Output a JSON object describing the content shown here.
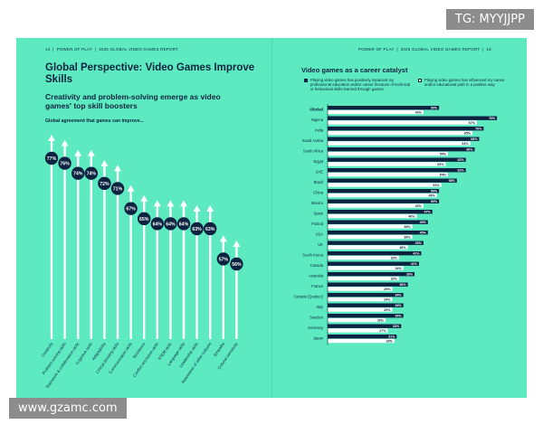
{
  "header": {
    "left_page": "14",
    "left_report": "POWER OF PLAY",
    "left_year_title": "2025 GLOBAL VIDEO GAMES REPORT",
    "right_report": "POWER OF PLAY",
    "right_year_title": "2025 GLOBAL VIDEO GAMES REPORT",
    "right_page": "15"
  },
  "left": {
    "title": "Global Perspective: Video Games Improve Skills",
    "subtitle": "Creativity and problem-solving emerge as video games' top skill boosters",
    "caption": "Global agreement that games can improve..."
  },
  "right": {
    "title": "Video games as a career catalyst"
  },
  "watermarks": {
    "top": "TG: MYYJJPP",
    "bottom": "www.gzamc.com"
  },
  "colors": {
    "background": "#5eeac0",
    "navy": "#0b2340",
    "white": "#ffffff"
  },
  "chart_data": [
    {
      "type": "bar",
      "title": "Global agreement that games can improve...",
      "categories": [
        "Creativity",
        "Problem-solving skills",
        "Teamwork & collaboration skills",
        "Cognitive skills",
        "Adaptability",
        "Critical-thinking skills",
        "Communication skills",
        "Resilience",
        "Conflict resolution skills",
        "STEM skills",
        "Language skills",
        "Leadership skills",
        "Awareness of other cultures",
        "Empathy",
        "Cultural sensitivity"
      ],
      "values": [
        77,
        76,
        74,
        74,
        72,
        71,
        67,
        65,
        64,
        64,
        64,
        63,
        63,
        57,
        56
      ],
      "value_labels": [
        "77%",
        "76%",
        "74%",
        "74%",
        "72%",
        "71%",
        "67%",
        "65%",
        "64%",
        "64%",
        "64%",
        "63%",
        "63%",
        "57%",
        "56%"
      ],
      "unit": "%",
      "style": "vertical arrows with circular percentage markers"
    },
    {
      "type": "bar",
      "title": "Video games as a career catalyst",
      "orientation": "horizontal",
      "categories": [
        "Global",
        "Nigeria",
        "India",
        "Saudi Arabia",
        "South Africa",
        "Egypt",
        "UAE",
        "Brazil",
        "China",
        "Mexico",
        "Spain",
        "Poland",
        "USA",
        "UK",
        "South Korea",
        "Canada",
        "Australia",
        "France",
        "Canada (Quebec)",
        "Italy",
        "Sweden",
        "Germany",
        "Japan"
      ],
      "series": [
        {
          "name": "Playing video games has positively impacted my professional education and/or career because of technical or behavioral skills learned through games",
          "values": [
            50,
            76,
            70,
            68,
            66,
            62,
            62,
            58,
            50,
            50,
            47,
            45,
            45,
            43,
            42,
            41,
            39,
            36,
            34,
            34,
            34,
            33,
            31
          ],
          "labels": [
            "50%",
            "76%",
            "70%",
            "68%",
            "66%",
            "62%",
            "62%",
            "58%",
            "50%",
            "50%",
            "47%",
            "45%",
            "45%",
            "43%",
            "42%",
            "41%",
            "39%",
            "36%",
            "34%",
            "34%",
            "34%",
            "33%",
            "31%"
          ]
        },
        {
          "name": "Playing video games has influenced my career and/or educational path in a positive way",
          "values": [
            43,
            67,
            65,
            64,
            54,
            53,
            54,
            51,
            49,
            43,
            40,
            38,
            38,
            36,
            32,
            34,
            32,
            29,
            29,
            29,
            26,
            27,
            30
          ],
          "labels": [
            "43%",
            "67%",
            "65%",
            "64%",
            "54%",
            "53%",
            "54%",
            "51%",
            "49%",
            "43%",
            "40%",
            "38%",
            "38%",
            "36%",
            "32%",
            "34%",
            "32%",
            "29%",
            "29%",
            "29%",
            "26%",
            "27%",
            "30%"
          ]
        }
      ],
      "xlim": [
        0,
        80
      ],
      "legend": "top"
    }
  ]
}
